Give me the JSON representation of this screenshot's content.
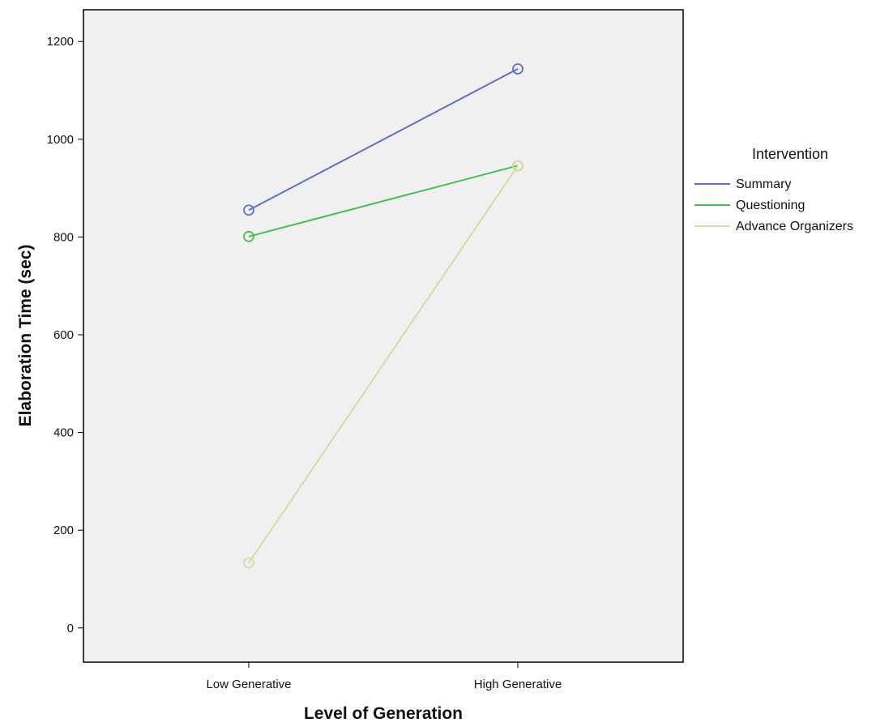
{
  "chart_data": {
    "type": "line",
    "title": "",
    "xlabel": "Level of Generation",
    "ylabel": "Elaboration Time (sec)",
    "categories": [
      "Low Generative",
      "High Generative"
    ],
    "ylim": [
      -70,
      1265
    ],
    "yticks": [
      0,
      200,
      400,
      600,
      800,
      1000,
      1200
    ],
    "grid": false,
    "legend": {
      "title": "Intervention",
      "position": "right"
    },
    "series": [
      {
        "name": "Summary",
        "values": [
          855,
          1144
        ],
        "color": "#6070c8",
        "marker": "circle-open"
      },
      {
        "name": "Questioning",
        "values": [
          801,
          946
        ],
        "color": "#44c050",
        "marker": "circle-open"
      },
      {
        "name": "Advance Organizers",
        "values": [
          133,
          946
        ],
        "color": "#dcd8a8",
        "marker": "circle-open"
      }
    ],
    "colors": {
      "plot_background": "#f0f0f0",
      "axis": "#000000"
    }
  }
}
